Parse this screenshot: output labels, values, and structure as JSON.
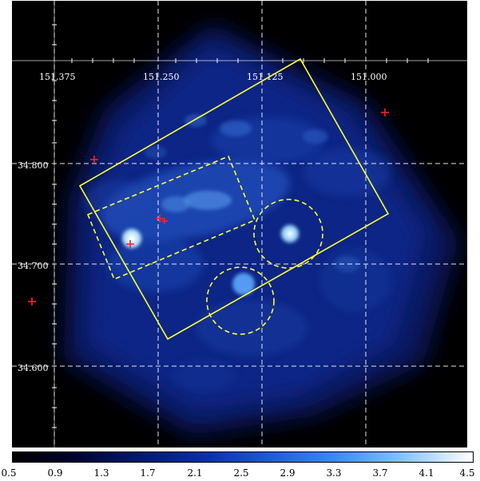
{
  "image": {
    "type": "x-ray sky map with WCS grid",
    "background": "#000000",
    "grid_color": "#ffffff",
    "overlay_color": "#ffff33",
    "marker_color": "#ff2020",
    "colormap": "black-blue-white"
  },
  "axes": {
    "ra_ticks": [
      "151.375",
      "151.250",
      "151.125",
      "151.000"
    ],
    "dec_ticks": [
      "34.800",
      "34.700",
      "34.600"
    ]
  },
  "colorbar": {
    "ticks": [
      "0.5",
      "0.9",
      "1.3",
      "1.7",
      "2.1",
      "2.5",
      "2.9",
      "3.3",
      "3.7",
      "4.1",
      "4.5"
    ]
  },
  "overlays": {
    "regions": [
      "outer-solid-rectangle",
      "inner-dashed-rectangle",
      "dashed-circle-right",
      "dashed-circle-bottom"
    ],
    "point_source_count": 6
  }
}
